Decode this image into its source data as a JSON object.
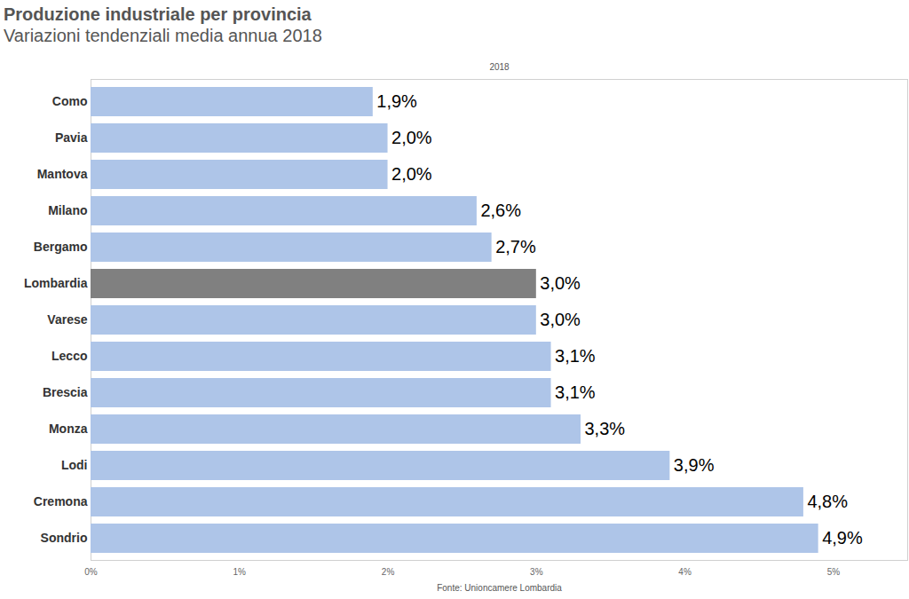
{
  "chart_data": {
    "type": "bar",
    "orientation": "horizontal",
    "title": "Produzione industriale per provincia",
    "subtitle": "Variazioni tendenziali media annua 2018",
    "annotations": [
      "2018"
    ],
    "caption": "Fonte: Unioncamere Lombardia",
    "categories": [
      "Como",
      "Pavia",
      "Mantova",
      "Milano",
      "Bergamo",
      "Lombardia",
      "Varese",
      "Lecco",
      "Brescia",
      "Monza",
      "Lodi",
      "Cremona",
      "Sondrio"
    ],
    "values": [
      1.9,
      2.0,
      2.0,
      2.6,
      2.7,
      3.0,
      3.0,
      3.1,
      3.1,
      3.3,
      3.9,
      4.8,
      4.9
    ],
    "value_labels": [
      "1,9%",
      "2,0%",
      "2,0%",
      "2,6%",
      "2,7%",
      "3,0%",
      "3,0%",
      "3,1%",
      "3,1%",
      "3,3%",
      "3,9%",
      "4,8%",
      "4,9%"
    ],
    "colors": [
      "#aec5e8",
      "#aec5e8",
      "#aec5e8",
      "#aec5e8",
      "#aec5e8",
      "#808080",
      "#aec5e8",
      "#aec5e8",
      "#aec5e8",
      "#aec5e8",
      "#aec5e8",
      "#aec5e8",
      "#aec5e8"
    ],
    "data_labels": true,
    "xlim": [
      0,
      5.5
    ],
    "xticks": [
      {
        "value": 0,
        "label": "0%"
      },
      {
        "value": 1,
        "label": "1%"
      },
      {
        "value": 2,
        "label": "2%"
      },
      {
        "value": 3,
        "label": "3%"
      },
      {
        "value": 4,
        "label": "4%"
      },
      {
        "value": 5,
        "label": "5%"
      }
    ],
    "grid": false
  }
}
